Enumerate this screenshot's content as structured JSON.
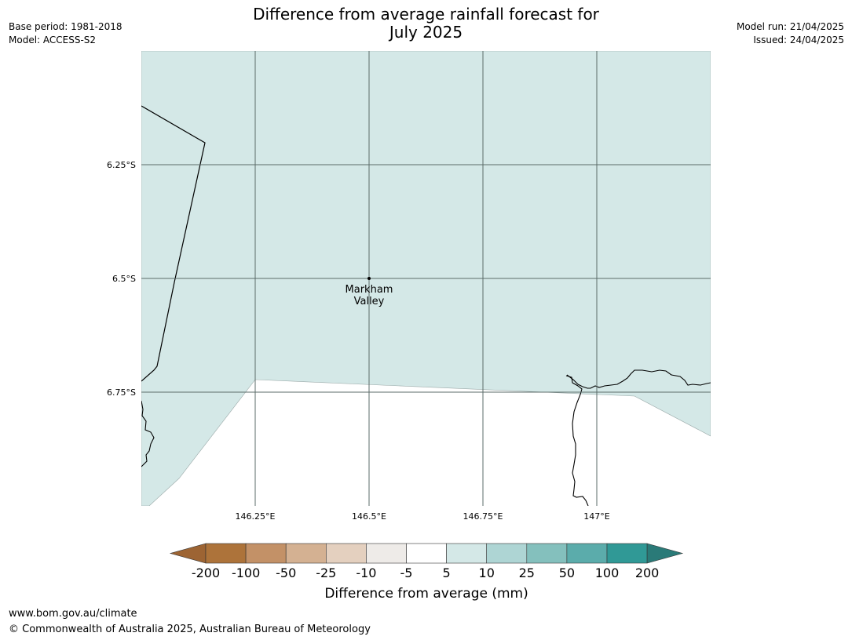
{
  "title": {
    "line1": "Difference from average rainfall forecast for",
    "line2": "July 2025"
  },
  "meta": {
    "base_period": "Base period: 1981-2018",
    "model": "Model: ACCESS-S2",
    "model_run": "Model run: 21/04/2025",
    "issued": "Issued: 24/04/2025"
  },
  "map": {
    "extent": {
      "lon_min": 146.0,
      "lon_max": 147.25,
      "lat_top": -6.0,
      "lat_bottom": -7.0
    },
    "lon_ticks": [
      {
        "value": 146.25,
        "label": "146.25°E"
      },
      {
        "value": 146.5,
        "label": "146.5°E"
      },
      {
        "value": 146.75,
        "label": "146.75°E"
      },
      {
        "value": 147.0,
        "label": "147°E"
      }
    ],
    "lat_ticks": [
      {
        "value": -6.25,
        "label": "6.25°S"
      },
      {
        "value": -6.5,
        "label": "6.5°S"
      },
      {
        "value": -6.75,
        "label": "6.75°S"
      }
    ],
    "place": {
      "name_line1": "Markham",
      "name_line2": "Valley",
      "lon": 146.5,
      "lat": -6.5
    },
    "land_fill_color": "#d4e8e7",
    "grid_color": "#5b6b69"
  },
  "colorbar": {
    "title": "Difference from average (mm)",
    "labels": [
      "-200",
      "-100",
      "-50",
      "-25",
      "-10",
      "-5",
      "5",
      "10",
      "25",
      "50",
      "100",
      "200"
    ],
    "colors": [
      "#ad733a",
      "#c39167",
      "#d4b192",
      "#e4d0bf",
      "#eeebe8",
      "#ffffff",
      "#d4e8e7",
      "#aed5d4",
      "#84c0bd",
      "#5bacab",
      "#309996"
    ],
    "under_color": "#9d6433",
    "over_color": "#2a7a78"
  },
  "footer": {
    "url": "www.bom.gov.au/climate",
    "copyright": "© Commonwealth of Australia 2025, Australian Bureau of Meteorology"
  }
}
